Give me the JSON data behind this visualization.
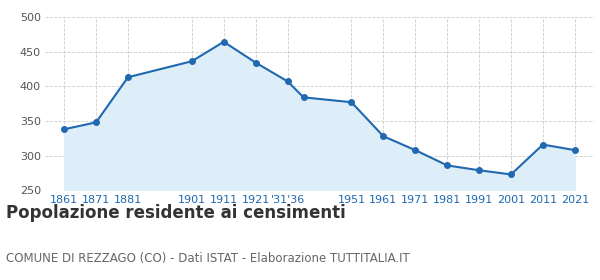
{
  "years": [
    1861,
    1871,
    1881,
    1901,
    1911,
    1921,
    1931,
    1936,
    1951,
    1961,
    1971,
    1981,
    1991,
    2001,
    2011,
    2021
  ],
  "population": [
    338,
    348,
    413,
    436,
    464,
    434,
    407,
    384,
    377,
    328,
    308,
    286,
    279,
    273,
    316,
    308
  ],
  "ylim": [
    250,
    500
  ],
  "yticks": [
    250,
    300,
    350,
    400,
    450,
    500
  ],
  "line_color": "#2068b0",
  "fill_color": "#ddeef8",
  "marker_color": "#2068b0",
  "grid_color": "#cccccc",
  "bg_color": "#ffffff",
  "title": "Popolazione residente ai censimenti",
  "subtitle": "COMUNE DI REZZAGO (CO) - Dati ISTAT - Elaborazione TUTTITALIA.IT",
  "title_fontsize": 12,
  "subtitle_fontsize": 8.5,
  "title_color": "#333333",
  "subtitle_color": "#666666",
  "tick_label_color": "#2068b0",
  "tick_label_fontsize": 8,
  "xlim_left": 1855,
  "xlim_right": 2027
}
